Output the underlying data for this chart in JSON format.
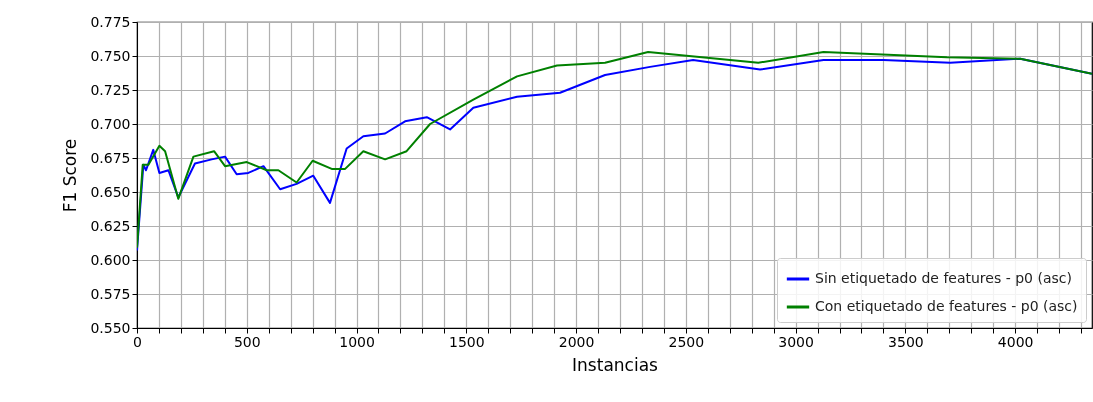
{
  "chart_data": {
    "type": "line",
    "xlabel": "Instancias",
    "ylabel": "F1 Score",
    "xlim": [
      0,
      4350
    ],
    "ylim": [
      0.55,
      0.775
    ],
    "xticks": [
      0,
      {
        "value": 100,
        "label": null
      },
      {
        "value": 200,
        "label": null
      },
      {
        "value": 300,
        "label": null
      },
      {
        "value": 400,
        "label": null
      },
      500,
      {
        "value": 600,
        "label": null
      },
      {
        "value": 700,
        "label": null
      },
      {
        "value": 800,
        "label": null
      },
      {
        "value": 900,
        "label": null
      },
      1000,
      {
        "value": 1100,
        "label": null
      },
      {
        "value": 1200,
        "label": null
      },
      {
        "value": 1300,
        "label": null
      },
      {
        "value": 1400,
        "label": null
      },
      1500,
      {
        "value": 1600,
        "label": null
      },
      {
        "value": 1700,
        "label": null
      },
      {
        "value": 1800,
        "label": null
      },
      {
        "value": 1900,
        "label": null
      },
      2000,
      {
        "value": 2100,
        "label": null
      },
      {
        "value": 2200,
        "label": null
      },
      {
        "value": 2300,
        "label": null
      },
      {
        "value": 2400,
        "label": null
      },
      2500,
      {
        "value": 2600,
        "label": null
      },
      {
        "value": 2700,
        "label": null
      },
      {
        "value": 2800,
        "label": null
      },
      {
        "value": 2900,
        "label": null
      },
      3000,
      {
        "value": 3100,
        "label": null
      },
      {
        "value": 3200,
        "label": null
      },
      {
        "value": 3300,
        "label": null
      },
      {
        "value": 3400,
        "label": null
      },
      3500,
      {
        "value": 3600,
        "label": null
      },
      {
        "value": 3700,
        "label": null
      },
      {
        "value": 3800,
        "label": null
      },
      {
        "value": 3900,
        "label": null
      },
      4000,
      {
        "value": 4100,
        "label": null
      },
      {
        "value": 4200,
        "label": null
      },
      {
        "value": 4300,
        "label": null
      }
    ],
    "yticks": [
      {
        "value": 0.55,
        "label": "0.550"
      },
      {
        "value": 0.575,
        "label": "0.575"
      },
      {
        "value": 0.6,
        "label": "0.600"
      },
      {
        "value": 0.625,
        "label": "0.625"
      },
      {
        "value": 0.65,
        "label": "0.650"
      },
      {
        "value": 0.675,
        "label": "0.675"
      },
      {
        "value": 0.7,
        "label": "0.700"
      },
      {
        "value": 0.725,
        "label": "0.725"
      },
      {
        "value": 0.75,
        "label": "0.750"
      },
      {
        "value": 0.775,
        "label": "0.775"
      }
    ],
    "grid": true,
    "legend": "bottom right",
    "line_style": "solid",
    "series": [
      {
        "name": "Sin etiquetado de features - p0 (asc)",
        "color": "#0000ff",
        "x": [
          0,
          29,
          41,
          74,
          102,
          143,
          188,
          264,
          340,
          401,
          454,
          507,
          576,
          652,
          727,
          803,
          879,
          955,
          1031,
          1130,
          1221,
          1320,
          1426,
          1532,
          1731,
          1927,
          2132,
          2337,
          2533,
          2838,
          3127,
          3400,
          3704,
          4023,
          4350
        ],
        "values": [
          0.607,
          0.67,
          0.666,
          0.681,
          0.664,
          0.666,
          0.646,
          0.671,
          0.674,
          0.676,
          0.663,
          0.664,
          0.669,
          0.652,
          0.656,
          0.662,
          0.642,
          0.682,
          0.691,
          0.693,
          0.702,
          0.705,
          0.696,
          0.712,
          0.72,
          0.723,
          0.736,
          0.742,
          0.747,
          0.74,
          0.747,
          0.747,
          0.745,
          0.748,
          0.737
        ]
      },
      {
        "name": "Con etiquetado de features - p0 (asc)",
        "color": "#008000",
        "x": [
          0,
          26,
          52,
          102,
          128,
          188,
          257,
          351,
          401,
          500,
          591,
          644,
          727,
          800,
          887,
          948,
          1031,
          1130,
          1228,
          1335,
          1532,
          1731,
          1913,
          2132,
          2328,
          2830,
          3127,
          3689,
          4023,
          4350
        ],
        "values": [
          0.609,
          0.67,
          0.67,
          0.684,
          0.68,
          0.645,
          0.676,
          0.68,
          0.669,
          0.672,
          0.666,
          0.666,
          0.657,
          0.673,
          0.667,
          0.667,
          0.68,
          0.674,
          0.68,
          0.7,
          0.718,
          0.735,
          0.743,
          0.745,
          0.753,
          0.745,
          0.753,
          0.749,
          0.748,
          0.737
        ]
      }
    ]
  }
}
